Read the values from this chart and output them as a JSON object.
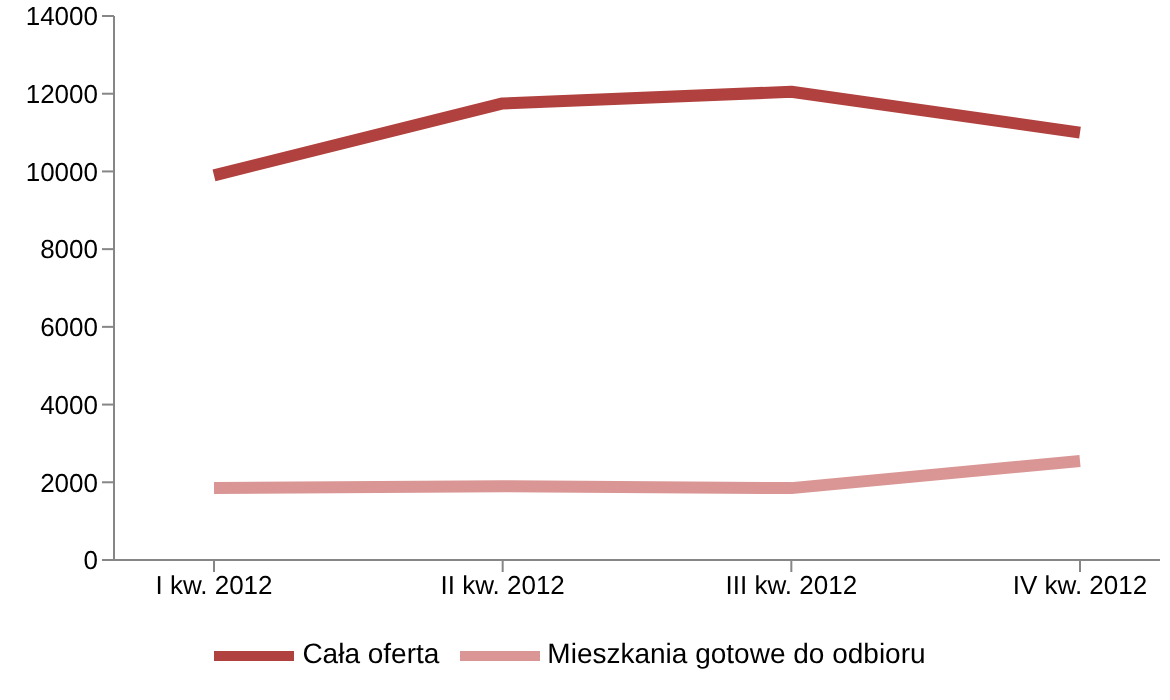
{
  "chart_data": {
    "type": "line",
    "categories": [
      "I kw. 2012",
      "II kw. 2012",
      "III kw. 2012",
      "IV kw. 2012"
    ],
    "series": [
      {
        "name": "Cała oferta",
        "color": "#b0413e",
        "values": [
          9900,
          11750,
          12050,
          11000
        ]
      },
      {
        "name": "Mieszkania gotowe do odbioru",
        "color": "#d99694",
        "values": [
          1850,
          1900,
          1850,
          2550
        ]
      }
    ],
    "ylim": [
      0,
      14000
    ],
    "yticks": [
      0,
      2000,
      4000,
      6000,
      8000,
      10000,
      12000,
      14000
    ],
    "grid": false,
    "legend": "bottom",
    "marker": "none",
    "line_style": "solid"
  }
}
